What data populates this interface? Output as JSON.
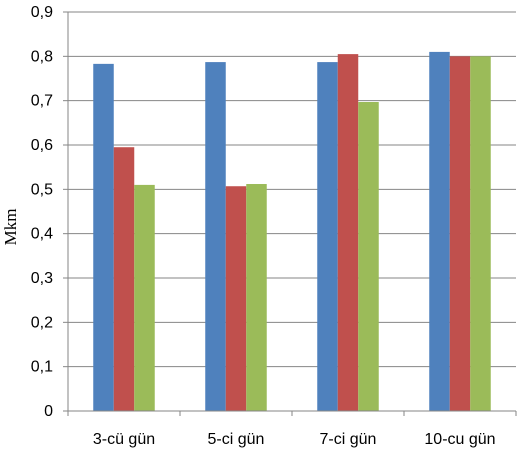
{
  "chart_data": {
    "type": "bar",
    "title": "",
    "xlabel": "",
    "ylabel": "Mkm",
    "ylim": [
      0,
      0.9
    ],
    "yticks": [
      "0",
      "0,1",
      "0,2",
      "0,3",
      "0,4",
      "0,5",
      "0,6",
      "0,7",
      "0,8",
      "0,9"
    ],
    "categories": [
      "3-cü gün",
      "5-ci gün",
      "7-ci gün",
      "10-cu gün"
    ],
    "grid": true,
    "legend": "none",
    "series": [
      {
        "color": "#4F81BD",
        "values": [
          0.783,
          0.787,
          0.787,
          0.81
        ]
      },
      {
        "color": "#C0504D",
        "values": [
          0.595,
          0.507,
          0.805,
          0.8
        ]
      },
      {
        "color": "#9BBB59",
        "values": [
          0.51,
          0.512,
          0.697,
          0.8
        ]
      }
    ]
  }
}
